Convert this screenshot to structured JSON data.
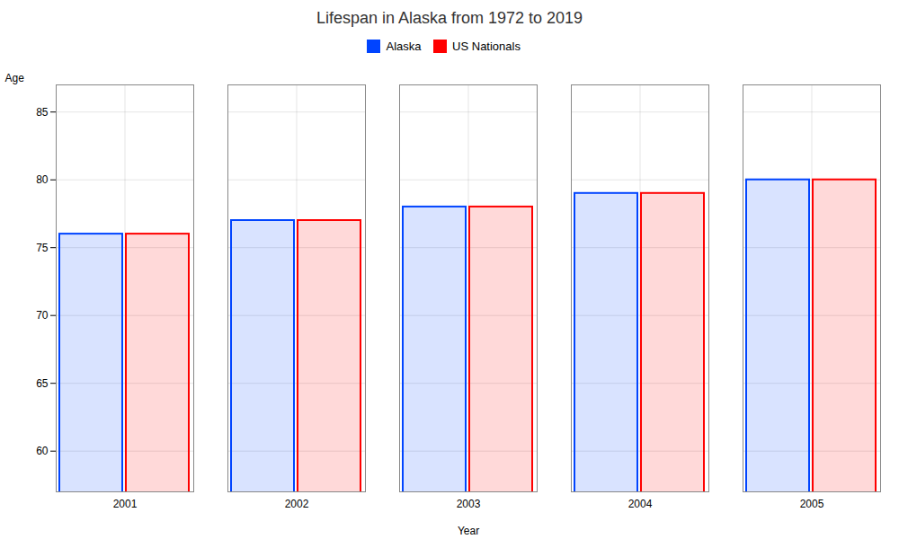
{
  "chart_data": {
    "type": "bar",
    "title": "Lifespan in Alaska from 1972 to 2019",
    "xlabel": "Year",
    "ylabel": "Age",
    "categories": [
      "2001",
      "2002",
      "2003",
      "2004",
      "2005"
    ],
    "series": [
      {
        "name": "Alaska",
        "color": "#0044ff",
        "values": [
          76,
          77,
          78,
          79,
          80
        ]
      },
      {
        "name": "US Nationals",
        "color": "#ff0000",
        "values": [
          76,
          77,
          78,
          79,
          80
        ]
      }
    ],
    "ylim": [
      57,
      87
    ],
    "yticks": [
      60,
      65,
      70,
      75,
      80,
      85
    ],
    "grid": true,
    "legend": "upper center"
  }
}
